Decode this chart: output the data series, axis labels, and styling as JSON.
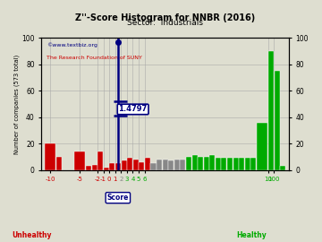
{
  "title": "Z''-Score Histogram for NNBR (2016)",
  "subtitle": "Sector:  Industrials",
  "watermark1": "©www.textbiz.org",
  "watermark2": "The Research Foundation of SUNY",
  "marker_value": 1.4797,
  "marker_label": "1.4797",
  "bg_color": "#deded0",
  "grid_color": "#aaaaaa",
  "red": "#cc0000",
  "green": "#00aa00",
  "gray": "#888888",
  "navy": "#000080",
  "bars": [
    [
      0,
      2,
      20,
      "red"
    ],
    [
      2,
      1,
      10,
      "red"
    ],
    [
      5,
      2,
      14,
      "red"
    ],
    [
      7,
      1,
      3,
      "red"
    ],
    [
      8,
      1,
      4,
      "red"
    ],
    [
      9,
      1,
      14,
      "red"
    ],
    [
      10,
      1,
      2,
      "red"
    ],
    [
      11,
      1,
      5,
      "red"
    ],
    [
      12,
      1,
      5,
      "red"
    ],
    [
      13,
      1,
      7,
      "red"
    ],
    [
      14,
      1,
      9,
      "red"
    ],
    [
      15,
      1,
      8,
      "red"
    ],
    [
      16,
      1,
      6,
      "red"
    ],
    [
      17,
      1,
      9,
      "red"
    ],
    [
      18,
      1,
      5,
      "gray"
    ],
    [
      19,
      1,
      8,
      "gray"
    ],
    [
      20,
      1,
      8,
      "gray"
    ],
    [
      21,
      1,
      7,
      "gray"
    ],
    [
      22,
      1,
      8,
      "gray"
    ],
    [
      23,
      1,
      8,
      "gray"
    ],
    [
      24,
      1,
      10,
      "green"
    ],
    [
      25,
      1,
      11,
      "green"
    ],
    [
      26,
      1,
      10,
      "green"
    ],
    [
      27,
      1,
      10,
      "green"
    ],
    [
      28,
      1,
      11,
      "green"
    ],
    [
      29,
      1,
      9,
      "green"
    ],
    [
      30,
      1,
      9,
      "green"
    ],
    [
      31,
      1,
      9,
      "green"
    ],
    [
      32,
      1,
      9,
      "green"
    ],
    [
      33,
      1,
      9,
      "green"
    ],
    [
      34,
      1,
      9,
      "green"
    ],
    [
      35,
      1,
      9,
      "green"
    ],
    [
      36,
      2,
      36,
      "green"
    ],
    [
      38,
      1,
      90,
      "green"
    ],
    [
      39,
      1,
      75,
      "green"
    ],
    [
      40,
      1,
      3,
      "green"
    ]
  ],
  "xtick_map": [
    [
      1,
      "-10"
    ],
    [
      6,
      "-5"
    ],
    [
      9,
      "-2"
    ],
    [
      10,
      "-1"
    ],
    [
      11,
      "0"
    ],
    [
      12,
      "1"
    ],
    [
      13,
      "2"
    ],
    [
      14,
      "3"
    ],
    [
      15,
      "4"
    ],
    [
      16,
      "5"
    ],
    [
      17,
      "6"
    ],
    [
      36,
      ""
    ],
    [
      38,
      "10"
    ],
    [
      39,
      "100"
    ],
    [
      41,
      ""
    ]
  ],
  "xtick_colors": [
    "red",
    "red",
    "red",
    "red",
    "red",
    "red",
    "gray",
    "green",
    "green",
    "green",
    "green",
    "green",
    "green",
    "green",
    "green"
  ],
  "yticks": [
    0,
    20,
    40,
    60,
    80,
    100
  ],
  "ylim": [
    0,
    100
  ],
  "xlim": [
    -0.5,
    41.5
  ]
}
